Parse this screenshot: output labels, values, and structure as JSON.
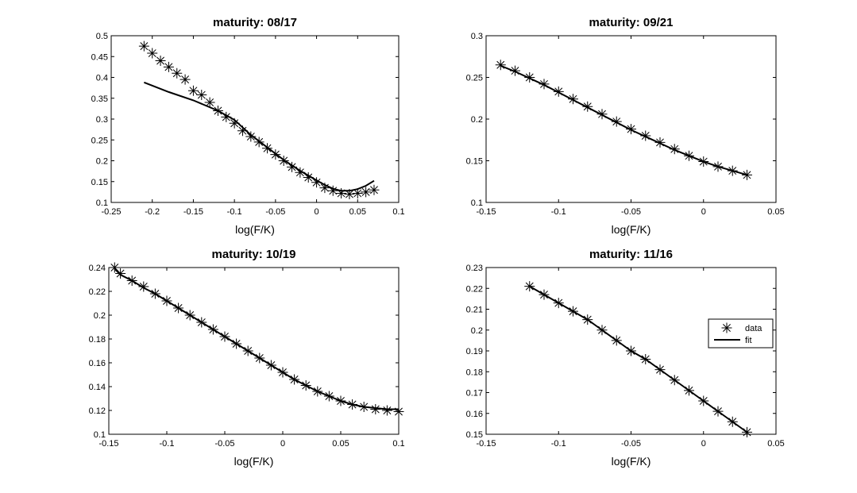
{
  "chart_data": [
    {
      "type": "line",
      "title": "maturity: 08/17",
      "xlabel": "log(F/K)",
      "ylabel": "",
      "xlim": [
        -0.25,
        0.1
      ],
      "ylim": [
        0.1,
        0.5
      ],
      "xticks": [
        -0.25,
        -0.2,
        -0.15,
        -0.1,
        -0.05,
        0,
        0.05,
        0.1
      ],
      "yticks": [
        0.1,
        0.15,
        0.2,
        0.25,
        0.3,
        0.35,
        0.4,
        0.45,
        0.5
      ],
      "xtick_labels": [
        "-0.25",
        "-0.2",
        "-0.15",
        "-0.1",
        "-0.05",
        "0",
        "0.05",
        "0.1"
      ],
      "ytick_labels": [
        "0.1",
        "0.15",
        "0.2",
        "0.25",
        "0.3",
        "0.35",
        "0.4",
        "0.45",
        "0.5"
      ],
      "grid": false,
      "legend": null,
      "series": [
        {
          "name": "data",
          "marker": "asterisk",
          "x": [
            -0.21,
            -0.2,
            -0.19,
            -0.18,
            -0.17,
            -0.16,
            -0.15,
            -0.14,
            -0.13,
            -0.12,
            -0.11,
            -0.1,
            -0.09,
            -0.08,
            -0.07,
            -0.06,
            -0.05,
            -0.04,
            -0.03,
            -0.02,
            -0.01,
            0.0,
            0.01,
            0.02,
            0.03,
            0.04,
            0.05,
            0.06,
            0.07
          ],
          "y": [
            0.475,
            0.458,
            0.44,
            0.425,
            0.41,
            0.395,
            0.368,
            0.358,
            0.34,
            0.32,
            0.305,
            0.29,
            0.272,
            0.258,
            0.245,
            0.23,
            0.215,
            0.2,
            0.185,
            0.172,
            0.16,
            0.148,
            0.135,
            0.128,
            0.122,
            0.12,
            0.122,
            0.125,
            0.13
          ]
        },
        {
          "name": "fit",
          "marker": "line",
          "x": [
            -0.21,
            -0.18,
            -0.15,
            -0.12,
            -0.1,
            -0.08,
            -0.06,
            -0.04,
            -0.02,
            0.0,
            0.01,
            0.02,
            0.03,
            0.04,
            0.05,
            0.06,
            0.07
          ],
          "y": [
            0.388,
            0.365,
            0.345,
            0.32,
            0.298,
            0.262,
            0.232,
            0.202,
            0.176,
            0.153,
            0.142,
            0.133,
            0.128,
            0.128,
            0.132,
            0.14,
            0.152
          ]
        }
      ]
    },
    {
      "type": "line",
      "title": "maturity: 09/21",
      "xlabel": "log(F/K)",
      "ylabel": "",
      "xlim": [
        -0.15,
        0.05
      ],
      "ylim": [
        0.1,
        0.3
      ],
      "xticks": [
        -0.15,
        -0.1,
        -0.05,
        0,
        0.05
      ],
      "yticks": [
        0.1,
        0.15,
        0.2,
        0.25,
        0.3
      ],
      "xtick_labels": [
        "-0.15",
        "-0.1",
        "-0.05",
        "0",
        "0.05"
      ],
      "ytick_labels": [
        "0.1",
        "0.15",
        "0.2",
        "0.25",
        "0.3"
      ],
      "grid": false,
      "legend": null,
      "series": [
        {
          "name": "data",
          "marker": "asterisk",
          "x": [
            -0.14,
            -0.13,
            -0.12,
            -0.11,
            -0.1,
            -0.09,
            -0.08,
            -0.07,
            -0.06,
            -0.05,
            -0.04,
            -0.03,
            -0.02,
            -0.01,
            0.0,
            0.01,
            0.02,
            0.03
          ],
          "y": [
            0.265,
            0.258,
            0.25,
            0.242,
            0.233,
            0.224,
            0.215,
            0.206,
            0.197,
            0.188,
            0.18,
            0.172,
            0.164,
            0.156,
            0.149,
            0.143,
            0.138,
            0.133
          ]
        },
        {
          "name": "fit",
          "marker": "line",
          "x": [
            -0.14,
            -0.13,
            -0.12,
            -0.11,
            -0.1,
            -0.09,
            -0.08,
            -0.07,
            -0.06,
            -0.05,
            -0.04,
            -0.03,
            -0.02,
            -0.01,
            0.0,
            0.01,
            0.02,
            0.03
          ],
          "y": [
            0.264,
            0.257,
            0.249,
            0.241,
            0.232,
            0.223,
            0.214,
            0.205,
            0.196,
            0.187,
            0.179,
            0.171,
            0.163,
            0.156,
            0.149,
            0.143,
            0.138,
            0.133
          ]
        }
      ]
    },
    {
      "type": "line",
      "title": "maturity: 10/19",
      "xlabel": "log(F/K)",
      "ylabel": "",
      "xlim": [
        -0.15,
        0.1
      ],
      "ylim": [
        0.1,
        0.24
      ],
      "xticks": [
        -0.15,
        -0.1,
        -0.05,
        0,
        0.05,
        0.1
      ],
      "yticks": [
        0.1,
        0.12,
        0.14,
        0.16,
        0.18,
        0.2,
        0.22,
        0.24
      ],
      "xtick_labels": [
        "-0.15",
        "-0.1",
        "-0.05",
        "0",
        "0.05",
        "0.1"
      ],
      "ytick_labels": [
        "0.1",
        "0.12",
        "0.14",
        "0.16",
        "0.18",
        "0.2",
        "0.22",
        "0.24"
      ],
      "grid": false,
      "legend": null,
      "series": [
        {
          "name": "data",
          "marker": "asterisk",
          "x": [
            -0.145,
            -0.14,
            -0.13,
            -0.12,
            -0.11,
            -0.1,
            -0.09,
            -0.08,
            -0.07,
            -0.06,
            -0.05,
            -0.04,
            -0.03,
            -0.02,
            -0.01,
            0.0,
            0.01,
            0.02,
            0.03,
            0.04,
            0.05,
            0.06,
            0.07,
            0.08,
            0.09,
            0.1
          ],
          "y": [
            0.24,
            0.235,
            0.229,
            0.224,
            0.218,
            0.212,
            0.206,
            0.2,
            0.194,
            0.188,
            0.182,
            0.176,
            0.17,
            0.164,
            0.158,
            0.152,
            0.146,
            0.141,
            0.136,
            0.132,
            0.128,
            0.125,
            0.123,
            0.121,
            0.12,
            0.119
          ]
        },
        {
          "name": "fit",
          "marker": "line",
          "x": [
            -0.145,
            -0.14,
            -0.13,
            -0.12,
            -0.11,
            -0.1,
            -0.09,
            -0.08,
            -0.07,
            -0.06,
            -0.05,
            -0.04,
            -0.03,
            -0.02,
            -0.01,
            0.0,
            0.01,
            0.02,
            0.03,
            0.04,
            0.05,
            0.06,
            0.07,
            0.08,
            0.09,
            0.1
          ],
          "y": [
            0.239,
            0.234,
            0.229,
            0.223,
            0.218,
            0.212,
            0.206,
            0.2,
            0.194,
            0.188,
            0.182,
            0.176,
            0.17,
            0.164,
            0.158,
            0.152,
            0.146,
            0.141,
            0.136,
            0.132,
            0.128,
            0.125,
            0.123,
            0.122,
            0.121,
            0.121
          ]
        }
      ]
    },
    {
      "type": "line",
      "title": "maturity: 11/16",
      "xlabel": "log(F/K)",
      "ylabel": "",
      "xlim": [
        -0.15,
        0.05
      ],
      "ylim": [
        0.15,
        0.23
      ],
      "xticks": [
        -0.15,
        -0.1,
        -0.05,
        0,
        0.05
      ],
      "yticks": [
        0.15,
        0.16,
        0.17,
        0.18,
        0.19,
        0.2,
        0.21,
        0.22,
        0.23
      ],
      "xtick_labels": [
        "-0.15",
        "-0.1",
        "-0.05",
        "0",
        "0.05"
      ],
      "ytick_labels": [
        "0.15",
        "0.16",
        "0.17",
        "0.18",
        "0.19",
        "0.2",
        "0.21",
        "0.22",
        "0.23"
      ],
      "grid": false,
      "legend": "right",
      "legend_entries": [
        "data",
        "fit"
      ],
      "series": [
        {
          "name": "data",
          "marker": "asterisk",
          "x": [
            -0.12,
            -0.11,
            -0.1,
            -0.09,
            -0.08,
            -0.07,
            -0.06,
            -0.05,
            -0.04,
            -0.03,
            -0.02,
            -0.01,
            0.0,
            0.01,
            0.02,
            0.03
          ],
          "y": [
            0.221,
            0.217,
            0.213,
            0.209,
            0.205,
            0.2,
            0.195,
            0.19,
            0.186,
            0.181,
            0.176,
            0.171,
            0.166,
            0.161,
            0.156,
            0.151
          ]
        },
        {
          "name": "fit",
          "marker": "line",
          "x": [
            -0.12,
            -0.11,
            -0.1,
            -0.09,
            -0.08,
            -0.07,
            -0.06,
            -0.05,
            -0.04,
            -0.03,
            -0.02,
            -0.01,
            0.0,
            0.01,
            0.02,
            0.03
          ],
          "y": [
            0.221,
            0.217,
            0.213,
            0.209,
            0.205,
            0.2,
            0.195,
            0.19,
            0.186,
            0.181,
            0.176,
            0.171,
            0.166,
            0.161,
            0.156,
            0.151
          ]
        }
      ]
    }
  ]
}
